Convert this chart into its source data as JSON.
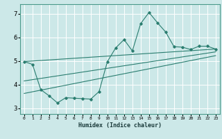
{
  "xlabel": "Humidex (Indice chaleur)",
  "bg_color": "#cce8e8",
  "line_color": "#2a7d6f",
  "grid_color": "#ffffff",
  "xlim": [
    -0.5,
    23.5
  ],
  "ylim": [
    2.75,
    7.4
  ],
  "yticks": [
    3,
    4,
    5,
    6,
    7
  ],
  "xticks": [
    0,
    1,
    2,
    3,
    4,
    5,
    6,
    7,
    8,
    9,
    10,
    11,
    12,
    13,
    14,
    15,
    16,
    17,
    18,
    19,
    20,
    21,
    22,
    23
  ],
  "series": [
    [
      0,
      4.97
    ],
    [
      1,
      4.85
    ],
    [
      2,
      3.78
    ],
    [
      3,
      3.52
    ],
    [
      4,
      3.22
    ],
    [
      5,
      3.44
    ],
    [
      6,
      3.42
    ],
    [
      7,
      3.4
    ],
    [
      8,
      3.38
    ],
    [
      9,
      3.7
    ],
    [
      10,
      4.97
    ],
    [
      11,
      5.55
    ],
    [
      12,
      5.9
    ],
    [
      13,
      5.42
    ],
    [
      14,
      6.58
    ],
    [
      15,
      7.05
    ],
    [
      16,
      6.62
    ],
    [
      17,
      6.22
    ],
    [
      18,
      5.6
    ],
    [
      19,
      5.58
    ],
    [
      20,
      5.48
    ],
    [
      21,
      5.62
    ],
    [
      22,
      5.62
    ],
    [
      23,
      5.5
    ]
  ],
  "line1": [
    [
      0,
      4.97
    ],
    [
      23,
      5.5
    ]
  ],
  "line2": [
    [
      0,
      4.15
    ],
    [
      23,
      5.38
    ]
  ],
  "line3": [
    [
      0,
      3.62
    ],
    [
      23,
      5.22
    ]
  ]
}
